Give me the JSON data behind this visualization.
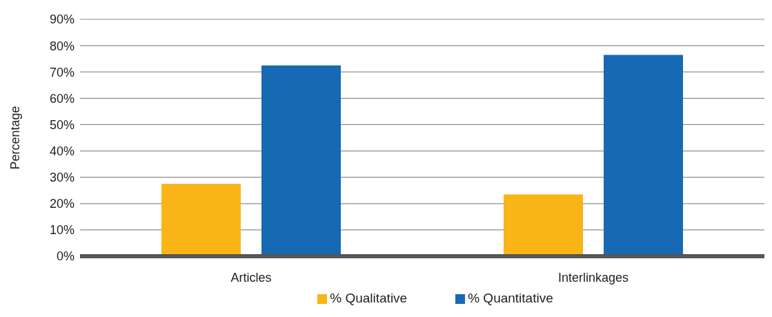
{
  "chart_data": {
    "type": "bar",
    "ylabel": "Percentage",
    "categories": [
      "Articles",
      "Interlinkages"
    ],
    "series": [
      {
        "name": "% Qualitative",
        "color": "#f9b418",
        "values": [
          27.5,
          23.5
        ]
      },
      {
        "name": "% Quantitative",
        "color": "#1769b3",
        "values": [
          72.5,
          76.5
        ]
      }
    ],
    "ylim": [
      0,
      90
    ],
    "yticks": [
      {
        "value": 0,
        "label": "0%"
      },
      {
        "value": 10,
        "label": "10%"
      },
      {
        "value": 20,
        "label": "20%"
      },
      {
        "value": 30,
        "label": "30%"
      },
      {
        "value": 40,
        "label": "40%"
      },
      {
        "value": 50,
        "label": "50%"
      },
      {
        "value": 60,
        "label": "60%"
      },
      {
        "value": 70,
        "label": "70%"
      },
      {
        "value": 80,
        "label": "80%"
      },
      {
        "value": 90,
        "label": "90%"
      }
    ],
    "grid": "y",
    "legend": "bottom"
  }
}
